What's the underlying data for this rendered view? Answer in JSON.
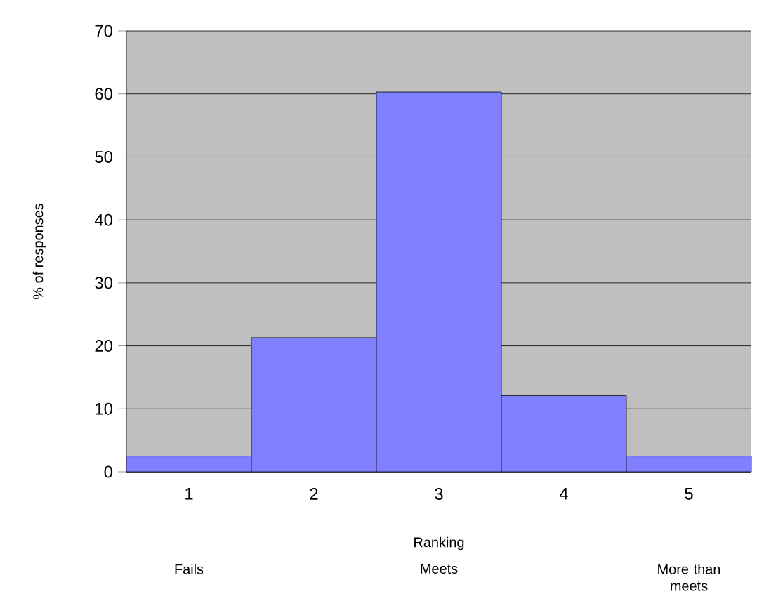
{
  "chart_data": {
    "type": "bar",
    "xlabel": "Ranking",
    "ylabel": "% of responses",
    "categories": [
      "1",
      "2",
      "3",
      "4",
      "5"
    ],
    "values": [
      2.5,
      21.3,
      60.3,
      12.1,
      2.5
    ],
    "color": "#8080ff",
    "ylim": [
      0,
      70
    ],
    "yticks": [
      0,
      10,
      20,
      30,
      40,
      50,
      60,
      70
    ],
    "grid": "y",
    "annotations": [
      "Fails",
      "Meets",
      "More than meets"
    ]
  }
}
